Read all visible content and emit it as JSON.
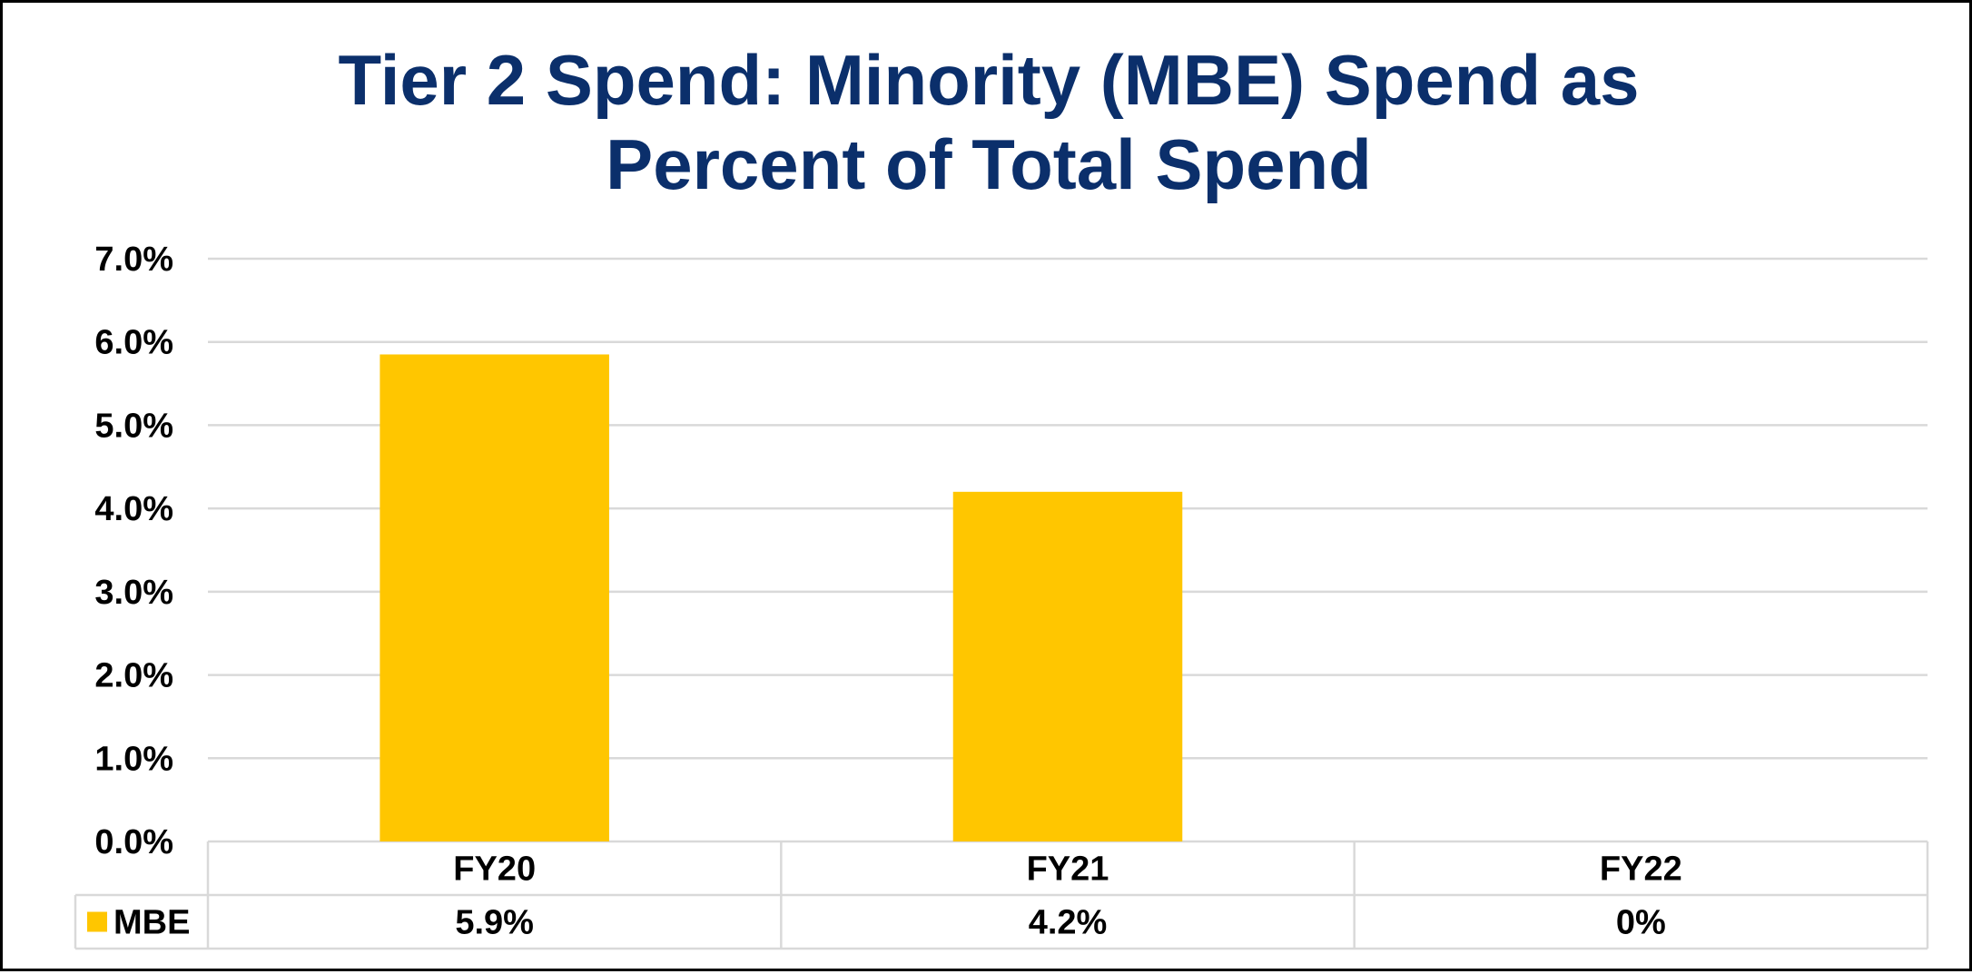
{
  "chart_data": {
    "type": "bar",
    "title_lines": [
      "Tier 2 Spend: Minority (MBE) Spend as",
      "Percent of Total Spend"
    ],
    "categories": [
      "FY20",
      "FY21",
      "FY22"
    ],
    "series": [
      {
        "name": "MBE",
        "values": [
          5.85,
          4.2,
          0
        ],
        "labels": [
          "5.9%",
          "4.2%",
          "0%"
        ]
      }
    ],
    "ylim": [
      0,
      7
    ],
    "ytick_step": 1,
    "ytick_labels": [
      "0.0%",
      "1.0%",
      "2.0%",
      "3.0%",
      "4.0%",
      "5.0%",
      "6.0%",
      "7.0%"
    ],
    "xlabel": "",
    "ylabel": "",
    "grid": true,
    "data_table": true,
    "legend": "data-table-left",
    "colors": {
      "bar": "#FFC600",
      "title": "#0B2F6B",
      "text": "#000000",
      "grid": "#D9D9D9"
    }
  }
}
